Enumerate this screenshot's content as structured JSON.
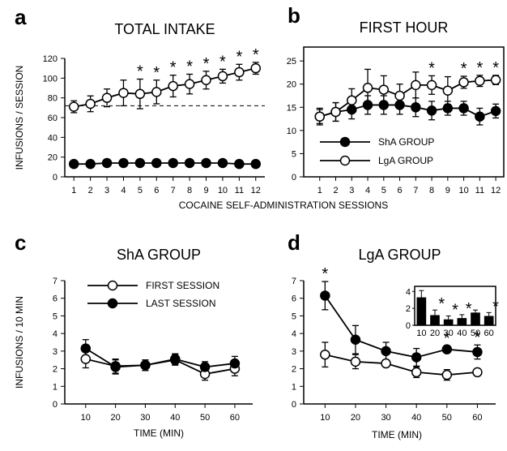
{
  "chart_data": [
    {
      "type": "line",
      "panel_label": "a",
      "title": "TOTAL INTAKE",
      "ylabel": "INFUSIONS / SESSION",
      "xlabel": "COCAINE SELF-ADMINISTRATION SESSIONS",
      "x": [
        1,
        2,
        3,
        4,
        5,
        6,
        7,
        8,
        9,
        10,
        11,
        12
      ],
      "xlim": [
        0.45,
        12.55
      ],
      "xticks": [
        1,
        2,
        3,
        4,
        5,
        6,
        7,
        8,
        9,
        10,
        11,
        12
      ],
      "ylim": [
        0,
        120
      ],
      "yticks": [
        0,
        20,
        40,
        60,
        80,
        100,
        120
      ],
      "frame": false,
      "reference_line": 72,
      "series": [
        {
          "name": "ShA GROUP",
          "color": "#000000",
          "fill": "#000000",
          "values": [
            13,
            13,
            14,
            14,
            14,
            14,
            14,
            14,
            14,
            14,
            13,
            13
          ],
          "errors": [
            2,
            2,
            2,
            2,
            2,
            2,
            2,
            2,
            2,
            2,
            2,
            2
          ]
        },
        {
          "name": "LgA GROUP",
          "color": "#000000",
          "fill": "#ffffff",
          "values": [
            71,
            74,
            80,
            85,
            84,
            86,
            92,
            94,
            98,
            102,
            106,
            110
          ],
          "errors": [
            6,
            8,
            9,
            13,
            15,
            12,
            11,
            10,
            9,
            7,
            8,
            6
          ]
        }
      ],
      "markers": [
        null,
        null,
        null,
        null,
        "*",
        "*",
        "*",
        "*",
        "*",
        "*",
        "*",
        "*"
      ]
    },
    {
      "type": "line",
      "panel_label": "b",
      "title": "FIRST HOUR",
      "x": [
        1,
        2,
        3,
        4,
        5,
        6,
        7,
        8,
        9,
        10,
        11,
        12
      ],
      "xlim": [
        0,
        12.5
      ],
      "xticks": [
        1,
        2,
        3,
        4,
        5,
        6,
        7,
        8,
        9,
        10,
        11,
        12
      ],
      "ylim": [
        0,
        28
      ],
      "yticks": [
        0,
        5,
        10,
        15,
        20,
        25
      ],
      "frame": true,
      "legend": "lower left",
      "series": [
        {
          "name": "ShA GROUP",
          "color": "#000000",
          "fill": "#000000",
          "values": [
            13,
            14,
            14.5,
            15.5,
            15.5,
            15.5,
            15,
            14.3,
            14.8,
            14.8,
            13,
            14.2
          ],
          "errors": [
            1.8,
            2,
            2,
            2,
            2,
            2,
            2,
            2,
            1.5,
            1.5,
            1.8,
            1.5
          ]
        },
        {
          "name": "LgA GROUP",
          "color": "#000000",
          "fill": "#ffffff",
          "values": [
            13,
            14,
            16.5,
            19.2,
            18.8,
            17.5,
            19.8,
            19.8,
            18.6,
            20.4,
            20.7,
            20.9
          ],
          "errors": [
            1.5,
            2,
            2.5,
            4,
            3,
            2.5,
            2.8,
            2,
            3,
            1.3,
            1.2,
            1
          ]
        }
      ],
      "markers": [
        null,
        null,
        null,
        null,
        null,
        null,
        null,
        "*",
        null,
        "*",
        "*",
        "*"
      ]
    },
    {
      "type": "line",
      "panel_label": "c",
      "title": "ShA GROUP",
      "ylabel": "INFUSIONS / 10 MIN",
      "xlabel": "TIME (MIN)",
      "x": [
        10,
        20,
        30,
        40,
        50,
        60
      ],
      "xlim": [
        3,
        66
      ],
      "xticks": [
        10,
        20,
        30,
        40,
        50,
        60
      ],
      "ylim": [
        0,
        7
      ],
      "yticks": [
        0,
        1,
        2,
        3,
        4,
        5,
        6,
        7
      ],
      "frame": false,
      "legend": "upper left",
      "series": [
        {
          "name": "FIRST SESSION",
          "color": "#000000",
          "fill": "#ffffff",
          "values": [
            2.55,
            2.15,
            2.2,
            2.5,
            1.7,
            2.0
          ],
          "errors": [
            0.5,
            0.4,
            0.3,
            0.3,
            0.35,
            0.4
          ]
        },
        {
          "name": "LAST SESSION",
          "color": "#000000",
          "fill": "#000000",
          "values": [
            3.15,
            2.1,
            2.2,
            2.55,
            2.1,
            2.3
          ],
          "errors": [
            0.5,
            0.4,
            0.3,
            0.3,
            0.3,
            0.4
          ]
        }
      ]
    },
    {
      "type": "line",
      "panel_label": "d",
      "title": "LgA GROUP",
      "xlabel": "TIME (MIN)",
      "x": [
        10,
        20,
        30,
        40,
        50,
        60
      ],
      "xlim": [
        3,
        66
      ],
      "xticks": [
        10,
        20,
        30,
        40,
        50,
        60
      ],
      "ylim": [
        0,
        7
      ],
      "yticks": [
        0,
        1,
        2,
        3,
        4,
        5,
        6,
        7
      ],
      "frame": false,
      "series": [
        {
          "name": "FIRST SESSION",
          "color": "#000000",
          "fill": "#ffffff",
          "values": [
            2.8,
            2.4,
            2.3,
            1.8,
            1.65,
            1.8
          ],
          "errors": [
            0.7,
            0.4,
            0.2,
            0.3,
            0.3,
            0.1
          ]
        },
        {
          "name": "LAST SESSION",
          "color": "#000000",
          "fill": "#000000",
          "values": [
            6.15,
            3.65,
            3.0,
            2.65,
            3.1,
            2.95
          ],
          "errors": [
            0.8,
            0.8,
            0.5,
            0.5,
            0.2,
            0.4
          ]
        }
      ],
      "markers": [
        "*",
        null,
        null,
        null,
        "*",
        "*"
      ],
      "inset": {
        "type": "bar",
        "categories": [
          "10",
          "20",
          "30",
          "40",
          "50",
          "60"
        ],
        "values": [
          3.3,
          1.2,
          0.7,
          0.85,
          1.5,
          1.1
        ],
        "errors": [
          0.8,
          0.6,
          0.4,
          0.4,
          0.3,
          0.4
        ],
        "ylim": [
          0,
          4.6
        ],
        "yticks": [
          0,
          2,
          4
        ],
        "color": "#000000",
        "markers": [
          null,
          "*",
          "*",
          "*",
          null,
          "*"
        ]
      }
    }
  ]
}
